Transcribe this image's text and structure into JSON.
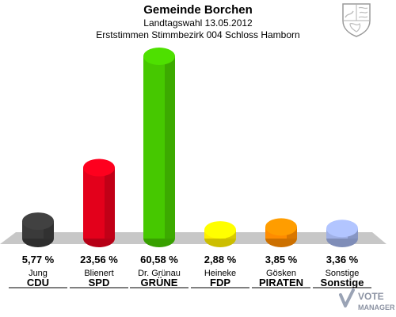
{
  "header": {
    "title": "Gemeinde Borchen",
    "subtitle": "Landtagswahl 13.05.2012",
    "subtitle2": "Erststimmen Stimmbezirk 004 Schloss Hamborn"
  },
  "chart_data": {
    "type": "bar",
    "title": "Gemeinde Borchen",
    "categories": [
      "CDU",
      "SPD",
      "GRÜNE",
      "FDP",
      "PIRATEN",
      "Sonstige"
    ],
    "candidates": [
      "Jung",
      "Blienert",
      "Dr. Grünau",
      "Heineke",
      "Gösken",
      "Sonstige"
    ],
    "values": [
      5.77,
      23.56,
      60.58,
      2.88,
      3.85,
      3.36
    ],
    "value_labels": [
      "5,77 %",
      "23,56 %",
      "60,58 %",
      "2,88 %",
      "3,85 %",
      "3,36 %"
    ],
    "colors": [
      "#3a3a3a",
      "#e3001b",
      "#46c800",
      "#ffee00",
      "#ff8c00",
      "#9fb0e6"
    ],
    "ylim": [
      0,
      62
    ],
    "grid": false,
    "legend": "none"
  },
  "logo": {
    "line1": "VOTE",
    "line2": "MANAGER"
  }
}
